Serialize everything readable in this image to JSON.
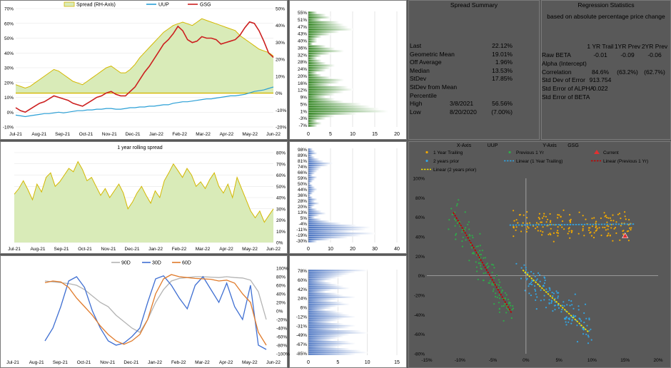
{
  "colors": {
    "spread_fill": "#d9ebb8",
    "spread_line": "#d4b800",
    "uup": "#2a9fd6",
    "gsg": "#cc1f1f",
    "green_bars": "#3a8a2a",
    "blue_bars": "#4a74c2",
    "d90": "#b3b3b3",
    "d30": "#3f6fd2",
    "d60": "#e07a2a",
    "orange_pts": "#f2a900",
    "green_pts": "#2faa4a",
    "blue_pts": "#33a3e0",
    "red_line": "#c00000",
    "yellow_line": "#f0e000"
  },
  "chart_data": [
    {
      "id": "spread",
      "type": "area",
      "legend": [
        "Spread (RH-Axis)",
        "UUP",
        "GSG"
      ],
      "x_labels": [
        "Jul-21",
        "Aug-21",
        "Sep-21",
        "Oct-21",
        "Nov-21",
        "Dec-21",
        "Jan-22",
        "Feb-22",
        "Mar-22",
        "Apr-22",
        "May-22",
        "Jun-22"
      ],
      "left_ticks": [
        "70%",
        "60%",
        "50%",
        "40%",
        "30%",
        "20%",
        "10%",
        "0%",
        "-10%"
      ],
      "right_ticks": [
        "50%",
        "40%",
        "30%",
        "20%",
        "10%",
        "0%",
        "-10%",
        "-20%"
      ],
      "ylim_left": [
        -10,
        70
      ],
      "ylim_right": [
        -20,
        50
      ],
      "spread": [
        5,
        4,
        3,
        4,
        6,
        8,
        10,
        12,
        14,
        13,
        11,
        9,
        7,
        6,
        5,
        7,
        9,
        11,
        13,
        15,
        16,
        14,
        12,
        12,
        14,
        17,
        21,
        24,
        27,
        30,
        33,
        36,
        38,
        40,
        41,
        42,
        41,
        40,
        42,
        44,
        43,
        42,
        41,
        40,
        39,
        38,
        37,
        34,
        32,
        30,
        28,
        26,
        25,
        24,
        22
      ],
      "uup": [
        -2,
        -2.5,
        -3,
        -2.5,
        -2,
        -1.5,
        -1,
        -1,
        -0.5,
        0,
        -0.5,
        0,
        0.5,
        1,
        1,
        1.5,
        1.5,
        2,
        2,
        2.5,
        2.5,
        2,
        2,
        2.5,
        3,
        3,
        3.5,
        3.5,
        4,
        4,
        4.5,
        5,
        5,
        6,
        6.5,
        7,
        7,
        7.5,
        8,
        8.5,
        9,
        9,
        9.5,
        10,
        10.5,
        11,
        11,
        11.5,
        12,
        13,
        14,
        14.5,
        15,
        16,
        17
      ],
      "gsg": [
        3,
        1,
        0,
        2,
        4,
        6,
        7,
        9,
        11,
        10,
        9,
        8,
        6,
        5,
        4,
        6,
        8,
        10,
        11,
        13,
        14,
        12,
        11,
        11,
        14,
        17,
        22,
        27,
        31,
        36,
        41,
        46,
        49,
        53,
        58,
        55,
        49,
        47,
        48,
        51,
        50,
        50,
        49,
        46,
        47,
        48,
        49,
        52,
        57,
        61,
        60,
        55,
        48,
        40,
        37
      ]
    },
    {
      "id": "spread_hist",
      "type": "bar",
      "y_labels": [
        "55%",
        "51%",
        "47%",
        "43%",
        "40%",
        "36%",
        "32%",
        "28%",
        "24%",
        "20%",
        "16%",
        "12%",
        "9%",
        "5%",
        "1%",
        "-3%",
        "-7%"
      ],
      "x_ticks": [
        "0",
        "5",
        "10",
        "15",
        "20"
      ],
      "xlim": [
        0,
        20
      ],
      "values": [
        2,
        4,
        5,
        3,
        7,
        8,
        9,
        10,
        7,
        5,
        3,
        2,
        2,
        1,
        4,
        6,
        8,
        5,
        3,
        2,
        3,
        4,
        6,
        5,
        4,
        2,
        3,
        5,
        8,
        7,
        5,
        9,
        10,
        8,
        6,
        4,
        6,
        8,
        12,
        14,
        16,
        18,
        11,
        6,
        4,
        2,
        3,
        2
      ]
    },
    {
      "id": "rolling",
      "type": "area",
      "title": "1 year rolling spread",
      "x_labels": [
        "Jul-21",
        "Aug-21",
        "Sep-21",
        "Oct-21",
        "Nov-21",
        "Dec-21",
        "Jan-22",
        "Feb-22",
        "Mar-22",
        "Apr-22",
        "May-22",
        "Jun-22"
      ],
      "right_ticks": [
        "80%",
        "70%",
        "60%",
        "50%",
        "40%",
        "30%",
        "20%",
        "10%",
        "0%"
      ],
      "ylim": [
        0,
        80
      ],
      "values": [
        43,
        48,
        55,
        47,
        38,
        52,
        45,
        58,
        62,
        50,
        54,
        60,
        66,
        63,
        72,
        65,
        55,
        58,
        50,
        42,
        48,
        40,
        46,
        52,
        44,
        30,
        36,
        44,
        50,
        42,
        35,
        46,
        40,
        55,
        62,
        70,
        64,
        58,
        66,
        60,
        50,
        54,
        48,
        56,
        62,
        50,
        44,
        52,
        40,
        58,
        48,
        38,
        28,
        22,
        28,
        18,
        24,
        30
      ]
    },
    {
      "id": "rolling_hist",
      "type": "bar",
      "y_labels": [
        "98%",
        "89%",
        "81%",
        "74%",
        "66%",
        "59%",
        "50%",
        "44%",
        "36%",
        "28%",
        "20%",
        "13%",
        "5%",
        "-4%",
        "-11%",
        "-19%",
        "-30%"
      ],
      "x_ticks": [
        "0",
        "10",
        "20",
        "30",
        "40"
      ],
      "xlim": [
        0,
        40
      ],
      "values": [
        2,
        3,
        4,
        2,
        3,
        5,
        7,
        11,
        9,
        6,
        5,
        4,
        3,
        2,
        4,
        3,
        2,
        1,
        2,
        3,
        4,
        3,
        2,
        1,
        2,
        4,
        3,
        5,
        3,
        2,
        4,
        6,
        8,
        5,
        3,
        6,
        10,
        15,
        22,
        28,
        26,
        20,
        30,
        24,
        18,
        10,
        4
      ]
    },
    {
      "id": "correlation",
      "type": "line",
      "legend": [
        "90D",
        "30D",
        "60D"
      ],
      "x_labels": [
        "Jul-21",
        "Aug-21",
        "Sep-21",
        "Oct-21",
        "Nov-21",
        "Dec-21",
        "Jan-22",
        "Feb-22",
        "Mar-22",
        "Apr-22",
        "May-22",
        "Jun-22"
      ],
      "right_ticks": [
        "100%",
        "80%",
        "60%",
        "40%",
        "20%",
        "0%",
        "-20%",
        "-40%",
        "-60%",
        "-80%",
        "-100%"
      ],
      "ylim": [
        -100,
        100
      ],
      "series": [
        {
          "name": "90D",
          "values": [
            70,
            68,
            66,
            64,
            60,
            50,
            35,
            20,
            10,
            -10,
            -25,
            -40,
            -50,
            -20,
            20,
            50,
            70,
            76,
            78,
            80,
            80,
            79,
            78,
            80,
            78,
            77,
            72,
            45,
            -20
          ]
        },
        {
          "name": "30D",
          "values": [
            -70,
            -40,
            10,
            70,
            80,
            55,
            0,
            -40,
            -70,
            -80,
            -75,
            -60,
            -40,
            20,
            75,
            82,
            60,
            30,
            5,
            60,
            80,
            50,
            20,
            65,
            10,
            -20,
            60,
            -80,
            -90
          ]
        },
        {
          "name": "60D",
          "values": [
            66,
            70,
            68,
            55,
            30,
            10,
            -10,
            -35,
            -55,
            -70,
            -78,
            -70,
            -55,
            -20,
            40,
            75,
            85,
            80,
            78,
            76,
            75,
            74,
            70,
            72,
            65,
            40,
            20,
            -50,
            -80
          ]
        }
      ]
    },
    {
      "id": "corr_hist",
      "type": "bar",
      "y_labels": [
        "78%",
        "60%",
        "42%",
        "24%",
        "6%",
        "-12%",
        "-31%",
        "-49%",
        "-67%",
        "-85%"
      ],
      "x_ticks": [
        "0",
        "5",
        "10",
        "15"
      ],
      "xlim": [
        0,
        15
      ],
      "values": [
        10,
        8,
        7,
        6,
        5,
        4,
        3,
        4,
        5,
        6,
        7,
        4,
        3,
        5,
        6,
        8,
        5,
        4,
        6,
        7,
        5,
        4,
        3,
        5,
        6,
        7,
        8,
        6,
        5,
        4,
        6,
        8,
        7,
        5,
        9,
        10,
        7,
        6,
        5,
        4,
        7,
        8,
        6,
        5,
        7,
        9,
        10,
        8
      ]
    },
    {
      "id": "regression",
      "type": "scatter",
      "title_x": "X-Axis",
      "title_x_val": "UUP",
      "title_y": "Y-Axis",
      "title_y_val": "GSG",
      "legend": [
        "1 Year Trailing",
        "Previous 1 Yr",
        "Current",
        "2 years prior",
        "Linear (1 Year Trailing)",
        "Linear (Previous 1 Yr)",
        "Linear (2 years prior)"
      ],
      "x_ticks": [
        "-15%",
        "-10%",
        "-5%",
        "0%",
        "5%",
        "10%",
        "15%",
        "20%"
      ],
      "y_ticks": [
        "100%",
        "80%",
        "60%",
        "40%",
        "20%",
        "0%",
        "-20%",
        "-40%",
        "-60%",
        "-80%"
      ],
      "xlim": [
        -15,
        20
      ],
      "ylim": [
        -80,
        100
      ],
      "clusters": [
        {
          "series": "1 Year Trailing",
          "cx": 7,
          "cy": 52,
          "sx": 5,
          "sy": 7,
          "n": 170,
          "color": "orange_pts"
        },
        {
          "series": "Previous 1 Yr",
          "cx": -9,
          "cy": 40,
          "sx": 3.5,
          "sy": 45,
          "n": 140,
          "color": "green_pts"
        },
        {
          "series": "2 years prior",
          "cx": 4.5,
          "cy": -15,
          "sx": 3,
          "sy": 18,
          "n": 140,
          "color": "blue_pts"
        }
      ],
      "current": {
        "x": 15,
        "y": 41
      },
      "fit_lines": [
        {
          "series": "Linear (1 Year Trailing)",
          "x": [
            -2.5,
            16.5
          ],
          "y": [
            52,
            53
          ]
        },
        {
          "series": "Linear (Previous 1 Yr)",
          "x": [
            -11,
            -2.2
          ],
          "y": [
            65,
            -38
          ]
        },
        {
          "series": "Linear (2 years prior)",
          "x": [
            -0.5,
            9.5
          ],
          "y": [
            6,
            -58
          ]
        }
      ]
    }
  ],
  "summary": {
    "title": "Spread Summary",
    "rows": [
      {
        "label": "Last",
        "c1": "",
        "c2": "22.12%"
      },
      {
        "label": "Geometric Mean",
        "c1": "",
        "c2": "19.01%"
      },
      {
        "label": "Off Average",
        "c1": "",
        "c2": "1.96%"
      },
      {
        "label": "Median",
        "c1": "",
        "c2": "13.53%"
      },
      {
        "label": "StDev",
        "c1": "",
        "c2": "17.85%"
      },
      {
        "label": "StDev from Mean",
        "c1": "",
        "c2": ""
      },
      {
        "label": "Percentile",
        "c1": "",
        "c2": ""
      },
      {
        "label": "High",
        "c1": "3/8/2021",
        "c2": "56.56%"
      },
      {
        "label": "Low",
        "c1": "8/20/2020",
        "c2": "(7.00%)"
      }
    ]
  },
  "regression_stats": {
    "title": "Regression Statistics",
    "subtitle": "based on absolute percentage price change",
    "cols": [
      "1 YR Trail",
      "1YR Prev",
      "2YR Prev"
    ],
    "rows": [
      {
        "label": "Raw BETA",
        "v": [
          "-0.01",
          "-0.09",
          "-0.06"
        ]
      },
      {
        "label": "Alpha (Intercept)",
        "v": [
          "",
          "",
          ""
        ]
      },
      {
        "label": "Correlation",
        "v": [
          "84.6%",
          "(63.2%)",
          "(62.7%)"
        ]
      },
      {
        "label": "Std Dev of Error",
        "v": [
          "913.754",
          "",
          ""
        ]
      },
      {
        "label": "Std Error of ALPHA",
        "v": [
          "0.022",
          "",
          ""
        ]
      },
      {
        "label": "Std Error of BETA",
        "v": [
          "",
          "",
          ""
        ]
      }
    ]
  }
}
